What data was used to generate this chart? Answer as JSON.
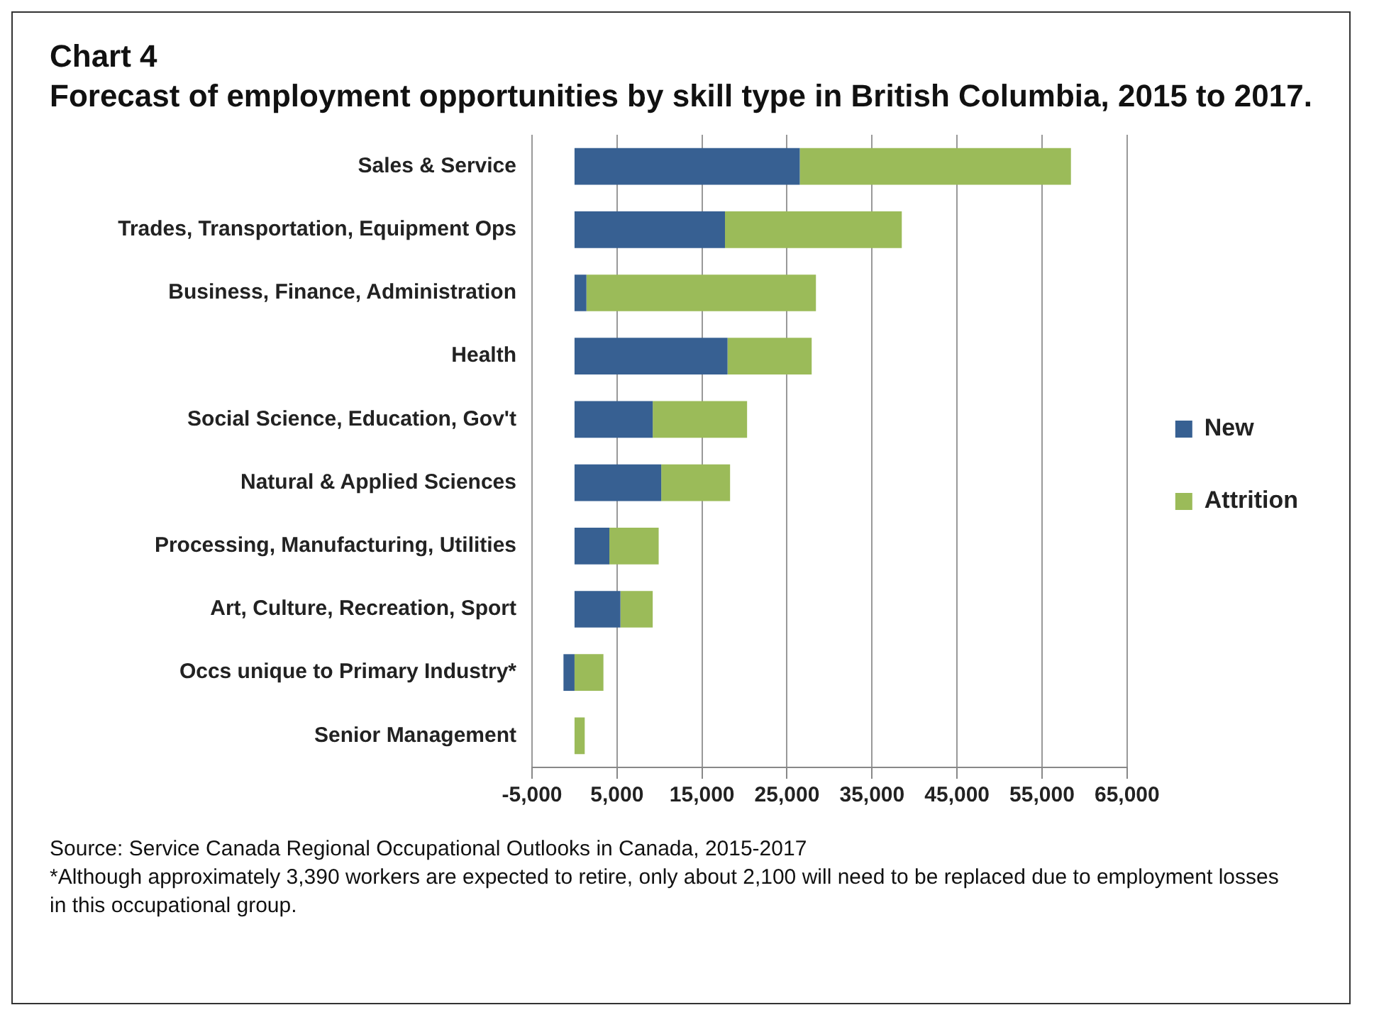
{
  "chart_data": {
    "type": "bar",
    "title": "Chart 4",
    "subtitle": "Forecast of employment opportunities by skill type in British Columbia, 2015 to 2017.",
    "orientation": "horizontal",
    "stacked": true,
    "categories": [
      "Sales & Service",
      "Trades, Transportation, Equipment Ops",
      "Business, Finance, Administration",
      "Health",
      "Social Science, Education, Gov't",
      "Natural & Applied Sciences",
      "Processing, Manufacturing, Utilities",
      "Art, Culture, Recreation, Sport",
      "Occs unique to Primary Industry*",
      "Senior Management"
    ],
    "series": [
      {
        "name": "New",
        "color": "#376092",
        "values": [
          26500,
          17700,
          1400,
          18000,
          9200,
          10200,
          4100,
          5400,
          -1300,
          0
        ]
      },
      {
        "name": "Attrition",
        "color": "#9bbb59",
        "values": [
          31900,
          20800,
          27000,
          9900,
          11100,
          8100,
          5800,
          3800,
          3400,
          1200
        ]
      }
    ],
    "xlim": [
      -5000,
      65000
    ],
    "xticks": [
      {
        "value": -5000,
        "label": "-5,000"
      },
      {
        "value": 5000,
        "label": "5,000"
      },
      {
        "value": 15000,
        "label": "15,000"
      },
      {
        "value": 25000,
        "label": "25,000"
      },
      {
        "value": 35000,
        "label": "35,000"
      },
      {
        "value": 45000,
        "label": "45,000"
      },
      {
        "value": 55000,
        "label": "55,000"
      },
      {
        "value": 65000,
        "label": "65,000"
      }
    ],
    "grid": "x",
    "legend": "right",
    "annotations": [
      "Source: Service Canada Regional Occupational Outlooks in Canada, 2015-2017",
      "*Although approximately 3,390 workers are expected to retire, only about 2,100  will need to be replaced due to employment losses in this occupational group."
    ]
  }
}
